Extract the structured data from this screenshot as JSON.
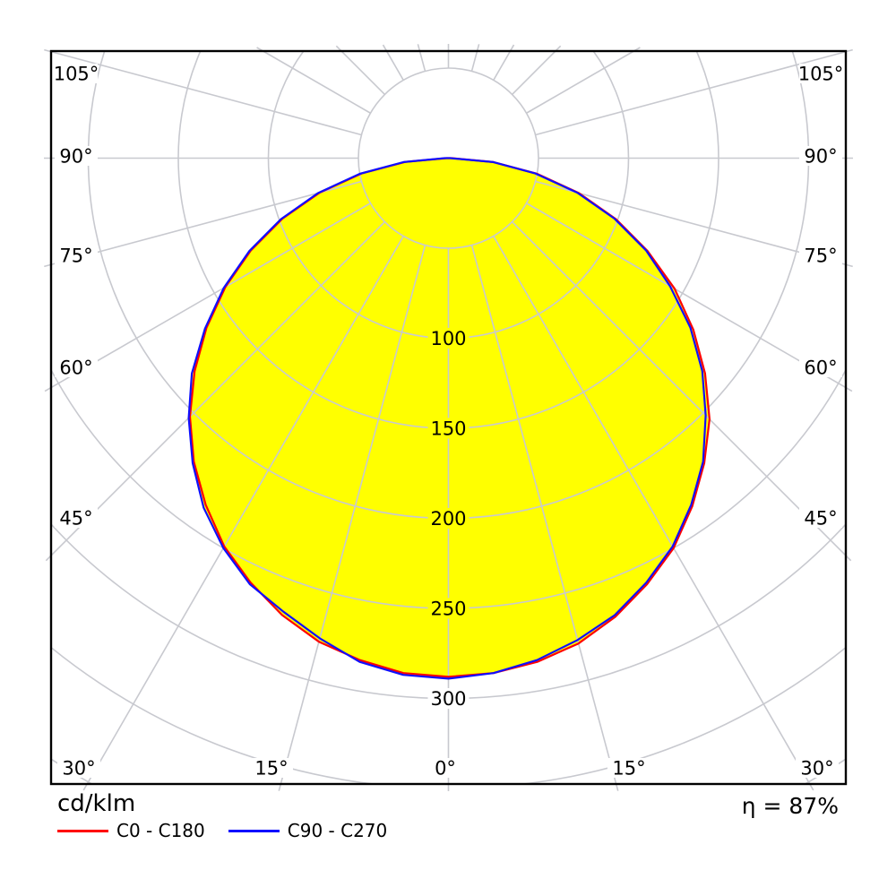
{
  "footer": {
    "unit": "cd/klm",
    "efficiency": "η = 87%"
  },
  "legend": [
    {
      "label": "C0 - C180",
      "color": "#ff0000"
    },
    {
      "label": "C90 - C270",
      "color": "#0f0fff"
    }
  ],
  "chart_data": {
    "type": "polar",
    "subtype": "luminous-intensity-distribution",
    "title": "",
    "unit": "cd/klm",
    "efficiency_text": "η = 87%",
    "fill_color": "#ffff00",
    "grid_color": "#c8c9cf",
    "border_color": "#000000",
    "angle_grid_step_deg": 15,
    "radial_grid_values": [
      50,
      100,
      150,
      200,
      250,
      300,
      350,
      400
    ],
    "radial_labels": [
      100,
      150,
      200,
      250,
      300
    ],
    "angle_labels_left": [
      "105°",
      "90°",
      "75°",
      "60°",
      "45°"
    ],
    "angle_labels_right": [
      "105°",
      "90°",
      "75°",
      "60°",
      "45°"
    ],
    "angle_labels_bottom": [
      "30°",
      "15°",
      "0°",
      "15°",
      "30°"
    ],
    "angles_deg": [
      0,
      5,
      10,
      15,
      20,
      25,
      30,
      35,
      40,
      45,
      50,
      55,
      60,
      65,
      70,
      75,
      80,
      85,
      90,
      95,
      100,
      105
    ],
    "series": [
      {
        "name": "C0 - C180",
        "color": "#ff0000",
        "right_values": [
          288,
          287,
          284,
          279,
          271,
          261,
          250,
          236,
          221,
          205,
          186,
          166,
          145,
          122,
          99,
          75,
          50,
          25,
          2,
          0,
          0,
          0
        ],
        "left_values": [
          288,
          287,
          283,
          278,
          270,
          260,
          249,
          235,
          220,
          203,
          184,
          164,
          143,
          121,
          98,
          74,
          49,
          24,
          1,
          0,
          0,
          0
        ]
      },
      {
        "name": "C90 - C270",
        "color": "#0f0fff",
        "right_values": [
          289,
          287,
          283,
          277,
          270,
          260,
          249,
          235,
          220,
          202,
          184,
          164,
          142,
          121,
          98,
          74,
          49,
          25,
          1,
          0,
          0,
          0
        ],
        "left_values": [
          289,
          288,
          284,
          276,
          268,
          261,
          250,
          237,
          221,
          204,
          186,
          165,
          144,
          122,
          99,
          75,
          50,
          25,
          2,
          0,
          0,
          0
        ]
      }
    ]
  }
}
